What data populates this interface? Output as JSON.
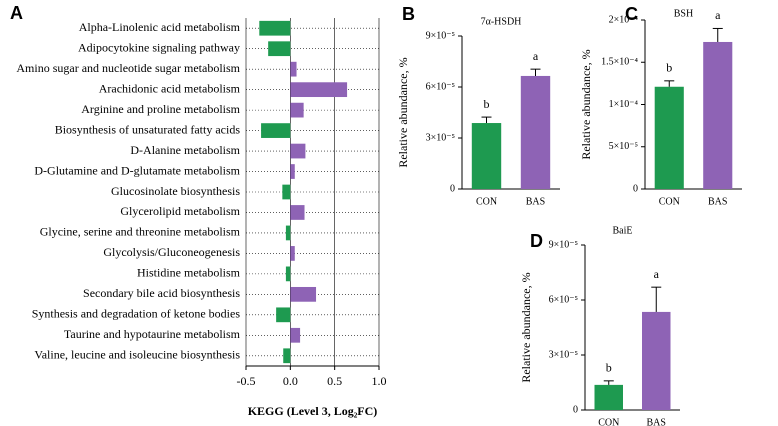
{
  "chart_data": [
    {
      "type": "barh",
      "panel": "A",
      "categories": [
        "Alpha-Linolenic acid metabolism",
        "Adipocytokine signaling pathway",
        "Amino sugar and nucleotide sugar metabolism",
        "Arachidonic acid metabolism",
        "Arginine and proline metabolism",
        "Biosynthesis of unsaturated fatty acids",
        "D-Alanine metabolism",
        "D-Glutamine and D-glutamate metabolism",
        "Glucosinolate biosynthesis",
        "Glycerolipid metabolism",
        "Glycine, serine and threonine metabolism",
        "Glycolysis/Gluconeogenesis",
        "Histidine metabolism",
        "Secondary bile acid biosynthesis",
        "Synthesis and degradation of ketone bodies",
        "Taurine and hypotaurine metabolism",
        "Valine, leucine and isoleucine biosynthesis"
      ],
      "values": [
        -0.35,
        -0.25,
        0.07,
        0.64,
        0.15,
        -0.33,
        0.17,
        0.05,
        -0.09,
        0.16,
        -0.05,
        0.05,
        -0.05,
        0.29,
        -0.16,
        0.11,
        -0.08
      ],
      "negative_color": "#1e9a50",
      "positive_color": "#8e63b5",
      "xlabel": "KEGG (Level 3, Log₂FC)",
      "xlim": [
        -0.5,
        1.0
      ],
      "xticks": [
        -0.5,
        {
          "value": 0,
          "label": "0.0"
        },
        0.5,
        {
          "value": 1,
          "label": "1.0"
        }
      ],
      "grid": true
    },
    {
      "type": "bar",
      "panel": "B",
      "title": "7α-HSDH",
      "ylabel": "Relative abundance, %",
      "categories": [
        "CON",
        "BAS"
      ],
      "values": [
        3.88e-05,
        6.65e-05
      ],
      "errors": [
        3.5e-06,
        4e-06
      ],
      "annotations": [
        "b",
        "a"
      ],
      "colors": [
        "#1e9a50",
        "#8e63b5"
      ],
      "ylim": [
        0,
        9e-05
      ],
      "yticks": [
        0,
        {
          "value": 3e-05,
          "label": "3×10⁻⁵"
        },
        {
          "value": 6e-05,
          "label": "6×10⁻⁵"
        },
        {
          "value": 9e-05,
          "label": "9×10⁻⁵"
        }
      ]
    },
    {
      "type": "bar",
      "panel": "C",
      "title": "BSH",
      "ylabel": "Relative abundance, %",
      "categories": [
        "CON",
        "BAS"
      ],
      "values": [
        0.000121,
        0.000174
      ],
      "errors": [
        7e-06,
        1.6e-05
      ],
      "annotations": [
        "b",
        "a"
      ],
      "colors": [
        "#1e9a50",
        "#8e63b5"
      ],
      "ylim": [
        0,
        0.0002
      ],
      "yticks": [
        0,
        {
          "value": 5e-05,
          "label": "5×10⁻⁵"
        },
        {
          "value": 0.0001,
          "label": "1×10⁻⁴"
        },
        {
          "value": 0.00015,
          "label": "1.5×10⁻⁴"
        },
        {
          "value": 0.0002,
          "label": "2×10⁻⁴"
        }
      ]
    },
    {
      "type": "bar",
      "panel": "D",
      "title": "BaiE",
      "ylabel": "Relative abundance, %",
      "categories": [
        "CON",
        "BAS"
      ],
      "values": [
        1.37e-05,
        5.35e-05
      ],
      "errors": [
        2.2e-06,
        1.35e-05
      ],
      "annotations": [
        "b",
        "a"
      ],
      "colors": [
        "#1e9a50",
        "#8e63b5"
      ],
      "ylim": [
        0,
        9e-05
      ],
      "yticks": [
        0,
        {
          "value": 3e-05,
          "label": "3×10⁻⁵"
        },
        {
          "value": 6e-05,
          "label": "6×10⁻⁵"
        },
        {
          "value": 9e-05,
          "label": "9×10⁻⁵"
        }
      ]
    }
  ]
}
